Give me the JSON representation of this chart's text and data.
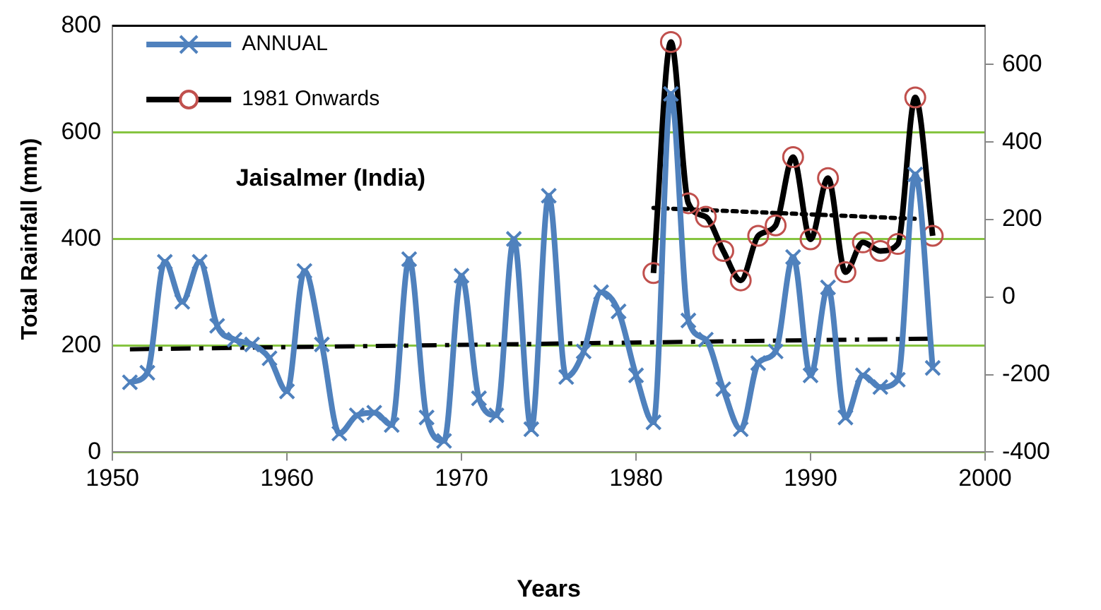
{
  "chart_data": {
    "type": "line",
    "title": "Jaisalmer (India)",
    "xlabel": "Years",
    "ylabel": "Total Rainfall (mm)",
    "xlim": [
      1950,
      2000
    ],
    "xticks": [
      1950,
      1960,
      1970,
      1980,
      1990,
      2000
    ],
    "ylim": [
      0,
      800
    ],
    "yticks": [
      0,
      200,
      400,
      600,
      800
    ],
    "y2lim": [
      -400,
      700
    ],
    "y2ticks": [
      -400,
      -200,
      0,
      200,
      400,
      600
    ],
    "grid": "y",
    "legend": "top left",
    "line_style": "solid",
    "series": [
      {
        "name": "ANNUAL",
        "color": "#4f81bd",
        "marker": "cross",
        "x": [
          1951,
          1952,
          1953,
          1954,
          1955,
          1956,
          1957,
          1958,
          1959,
          1960,
          1961,
          1962,
          1963,
          1964,
          1965,
          1966,
          1967,
          1968,
          1969,
          1970,
          1971,
          1972,
          1973,
          1974,
          1975,
          1976,
          1977,
          1978,
          1979,
          1980,
          1981,
          1982,
          1983,
          1984,
          1985,
          1986,
          1987,
          1988,
          1989,
          1990,
          1991,
          1992,
          1993,
          1994,
          1995,
          1996,
          1997
        ],
        "values": [
          131,
          149,
          357,
          282,
          357,
          237,
          211,
          202,
          176,
          114,
          340,
          202,
          35,
          69,
          74,
          51,
          362,
          65,
          21,
          331,
          101,
          69,
          400,
          43,
          481,
          141,
          189,
          300,
          264,
          144,
          56,
          672,
          247,
          211,
          118,
          43,
          167,
          189,
          366,
          144,
          309,
          65,
          144,
          122,
          136,
          521,
          158
        ]
      },
      {
        "name": "1981 Onwards",
        "color": "#000000",
        "marker": "circle",
        "axis": "y2",
        "x": [
          1981,
          1982,
          1983,
          1984,
          1985,
          1986,
          1987,
          1988,
          1989,
          1990,
          1991,
          1992,
          1993,
          1994,
          1995,
          1996,
          1997
        ],
        "values": [
          62,
          658,
          242,
          207,
          119,
          43,
          158,
          185,
          361,
          149,
          307,
          64,
          141,
          119,
          137,
          515,
          158
        ]
      },
      {
        "color": "#000000",
        "marker": "none",
        "line_style": "dashed",
        "x": [
          1951,
          1997
        ],
        "values": [
          193,
          213
        ]
      },
      {
        "color": "#000000",
        "marker": "none",
        "line_style": "dotted",
        "axis": "y2",
        "x": [
          1981,
          1996
        ],
        "values": [
          230,
          202
        ]
      }
    ]
  }
}
